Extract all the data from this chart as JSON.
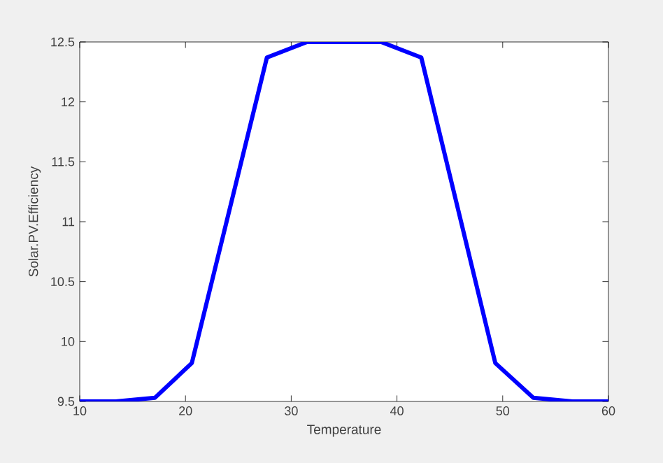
{
  "chart_data": {
    "type": "line",
    "xlabel": "Temperature",
    "ylabel": "Solar.PV.Efficiency",
    "x": [
      10,
      13.4,
      17.1,
      20.6,
      27.7,
      31.5,
      38.5,
      42.3,
      49.3,
      52.9,
      56.6,
      60
    ],
    "series": [
      {
        "color": "#0000ff",
        "values": [
          9.5,
          9.5,
          9.53,
          9.82,
          12.37,
          12.5,
          12.5,
          12.37,
          9.82,
          9.53,
          9.5,
          9.5
        ]
      }
    ],
    "xlim": [
      10,
      60
    ],
    "ylim": [
      9.5,
      12.5
    ],
    "xticks": [
      10,
      20,
      30,
      40,
      50,
      60
    ],
    "yticks": [
      9.5,
      10,
      10.5,
      11,
      11.5,
      12,
      12.5
    ],
    "marker": "none",
    "line_style": "solid"
  }
}
